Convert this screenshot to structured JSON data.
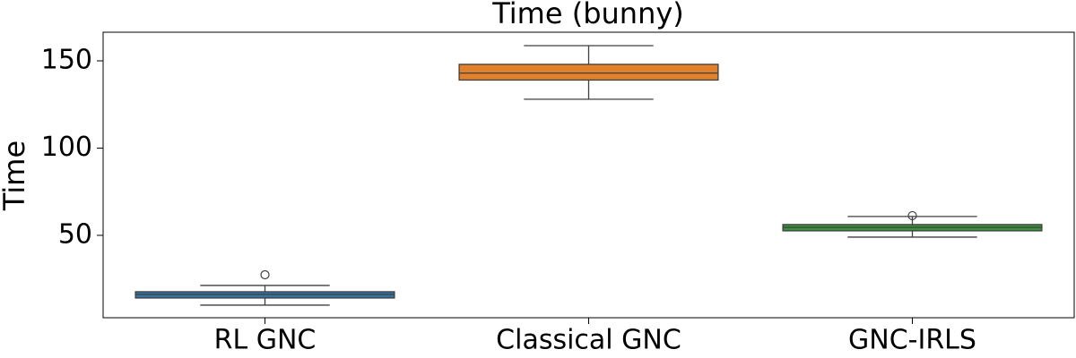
{
  "chart_data": {
    "type": "box",
    "title": "Time (bunny)",
    "y_label": "Time",
    "categories": [
      "RL GNC",
      "Classical GNC",
      "GNC-IRLS"
    ],
    "colors": [
      "#3274a1",
      "#e1812c",
      "#3a923a"
    ],
    "whisker_low": [
      10,
      128,
      49
    ],
    "q1": [
      14.1,
      139,
      52.6
    ],
    "median": [
      16.2,
      143,
      54.6
    ],
    "q3": [
      17.7,
      148,
      56.2
    ],
    "whisker_high": [
      21.3,
      158.7,
      60.8
    ],
    "outliers": [
      [
        27.4
      ],
      [],
      [
        61.3
      ]
    ],
    "ylim": [
      2.8,
      166.4
    ],
    "yticks": [
      50,
      100,
      150
    ]
  }
}
